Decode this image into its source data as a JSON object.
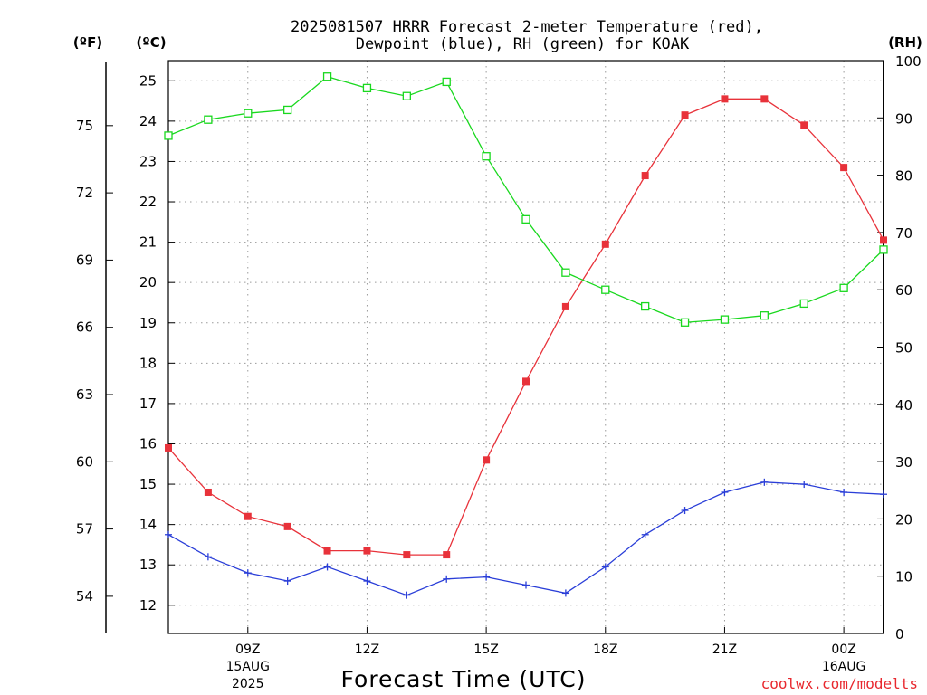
{
  "chart_data": {
    "type": "line",
    "title_line1": "2025081507 HRRR Forecast 2-meter Temperature (red),",
    "title_line2": "Dewpoint (blue), RH (green) for KOAK",
    "units": {
      "fahrenheit": "(ºF)",
      "celsius": "(ºC)",
      "rh": "(RH)"
    },
    "xlabel": "Forecast Time (UTC)",
    "credit": "coolwx.com/modelts",
    "x_hours": [
      7,
      8,
      9,
      10,
      11,
      12,
      13,
      14,
      15,
      16,
      17,
      18,
      19,
      20,
      21,
      22,
      23,
      24,
      25
    ],
    "xlim": [
      7,
      25
    ],
    "x_ticks": [
      {
        "hour": 9,
        "label": "09Z",
        "sub1": "15AUG",
        "sub2": "2025"
      },
      {
        "hour": 12,
        "label": "12Z",
        "sub1": "",
        "sub2": ""
      },
      {
        "hour": 15,
        "label": "15Z",
        "sub1": "",
        "sub2": ""
      },
      {
        "hour": 18,
        "label": "18Z",
        "sub1": "",
        "sub2": ""
      },
      {
        "hour": 21,
        "label": "21Z",
        "sub1": "",
        "sub2": ""
      },
      {
        "hour": 24,
        "label": "00Z",
        "sub1": "16AUG",
        "sub2": ""
      }
    ],
    "ylim_c": [
      11.3,
      25.5
    ],
    "ylim_rh": [
      0,
      100
    ],
    "left_c_ticks": [
      "12",
      "13",
      "14",
      "15",
      "16",
      "17",
      "18",
      "19",
      "20",
      "21",
      "22",
      "23",
      "24",
      "25"
    ],
    "left_f_ticks": [
      "54",
      "57",
      "60",
      "63",
      "66",
      "69",
      "72",
      "75"
    ],
    "right_rh_ticks": [
      "0",
      "10",
      "20",
      "30",
      "40",
      "50",
      "60",
      "70",
      "80",
      "90",
      "100"
    ],
    "grid": true,
    "series": [
      {
        "key": "temperature",
        "color": "#e8323a",
        "marker": "filled-square",
        "axis": "celsius",
        "values": [
          15.9,
          14.8,
          14.2,
          13.95,
          13.35,
          13.35,
          13.25,
          13.25,
          15.6,
          17.55,
          19.4,
          20.95,
          22.65,
          24.15,
          24.55,
          24.55,
          23.9,
          22.85,
          21.05
        ]
      },
      {
        "key": "dewpoint",
        "color": "#2a3ed8",
        "marker": "plus",
        "axis": "celsius",
        "values": [
          13.75,
          13.2,
          12.8,
          12.6,
          12.95,
          12.6,
          12.25,
          12.65,
          12.7,
          12.5,
          12.3,
          12.95,
          13.75,
          14.35,
          14.8,
          15.05,
          15.0,
          14.8,
          14.75
        ]
      },
      {
        "key": "rh",
        "color": "#19d81e",
        "marker": "open-square",
        "axis": "rh",
        "values": [
          86.9,
          89.7,
          90.8,
          91.4,
          97.2,
          95.2,
          93.8,
          96.3,
          83.3,
          72.3,
          63.0,
          60.0,
          57.1,
          54.3,
          54.8,
          55.5,
          57.6,
          60.3,
          67.0
        ]
      }
    ]
  }
}
